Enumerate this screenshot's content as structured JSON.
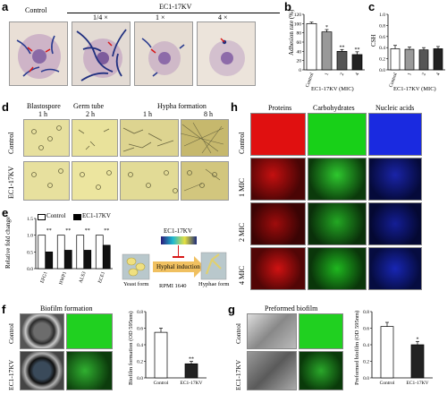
{
  "panels": {
    "a": "a",
    "b": "b",
    "c": "c",
    "d": "d",
    "e": "e",
    "f": "f",
    "g": "g",
    "h": "h"
  },
  "a": {
    "control": "Control",
    "peptide": "EC1-17KV",
    "doses": [
      "1/4 ×",
      "1 ×",
      "4 ×"
    ]
  },
  "b": {
    "ylabel": "Adhesion rate (%)",
    "xlabel": "EC1-17KV (MIC)",
    "ticks_y": [
      "0",
      "20",
      "40",
      "60",
      "80",
      "100",
      "120"
    ]
  },
  "c": {
    "ylabel": "CSH",
    "xlabel": "EC1-17KV (MIC)",
    "ticks_y": [
      "0.0",
      "0.2",
      "0.4",
      "0.6",
      "0.8",
      "1.0"
    ]
  },
  "d": {
    "headers": [
      "Blastospore",
      "Germ tube",
      "Hypha formation"
    ],
    "times": [
      "1 h",
      "2 h",
      "1 h",
      "8 h"
    ],
    "rows": [
      "Control",
      "EC1-17KV"
    ]
  },
  "e": {
    "ylabel": "Relative fold change",
    "legend": [
      "Control",
      "EC1-17KV"
    ],
    "ticks_y": [
      "0.0",
      "0.5",
      "1.0",
      "1.5"
    ],
    "schema": {
      "peptide": "EC1-17KV",
      "arrow": "Hyphal induction",
      "medium": "RPMI 1640",
      "yeast": "Yeast form",
      "hyphae": "Hyphae form"
    }
  },
  "f": {
    "title": "Biofilm formation",
    "rows": [
      "Control",
      "EC1-17KV"
    ],
    "ylabel": "Biofilm formation (OD 595nm)",
    "ticks_y": [
      "0.0",
      "0.2",
      "0.4",
      "0.6",
      "0.8"
    ]
  },
  "g": {
    "title": "Preformed biofilm",
    "rows": [
      "Control",
      "EC1-17KV"
    ],
    "ylabel": "Preformed biofilm (OD 595nm)",
    "ticks_y": [
      "0.0",
      "0.2",
      "0.4",
      "0.6",
      "0.8"
    ]
  },
  "h": {
    "columns": [
      "Proteins",
      "Carbohydrates",
      "Nucleic acids"
    ],
    "rows": [
      "Control",
      "1 MIC",
      "2 MIC",
      "4 MIC"
    ]
  },
  "colors": {
    "red": "#d81818",
    "green": "#28c828",
    "blue": "#1e2ed8",
    "micro_bg": "#e8ddd3",
    "yellow_bg": "#e9e29b"
  },
  "chart_data": [
    {
      "id": "b",
      "type": "bar",
      "categories": [
        "Control",
        "1",
        "2",
        "4"
      ],
      "values": [
        100,
        82,
        40,
        33
      ],
      "errors": [
        3,
        5,
        4,
        6
      ],
      "ylim": [
        0,
        120
      ],
      "significance": [
        "",
        "*",
        "**",
        "**"
      ],
      "ylabel": "Adhesion rate (%)",
      "xlabel": "EC1-17KV (MIC)"
    },
    {
      "id": "c",
      "type": "bar",
      "categories": [
        "Control",
        "1",
        "2",
        "4"
      ],
      "values": [
        0.38,
        0.37,
        0.36,
        0.38
      ],
      "errors": [
        0.06,
        0.04,
        0.04,
        0.04
      ],
      "ylim": [
        0,
        1.0
      ],
      "ylabel": "CSH",
      "xlabel": "EC1-17KV (MIC)"
    },
    {
      "id": "e",
      "type": "bar",
      "categories": [
        "EFG1",
        "HWP1",
        "ALS3",
        "ECE1"
      ],
      "series": [
        {
          "name": "Control",
          "values": [
            1,
            1,
            1,
            1
          ]
        },
        {
          "name": "EC1-17KV",
          "values": [
            0.5,
            0.55,
            0.55,
            0.7
          ]
        }
      ],
      "significance": [
        "**",
        "**",
        "**",
        "**"
      ],
      "ylim": [
        0,
        1.5
      ],
      "ylabel": "Relative fold change"
    },
    {
      "id": "f",
      "type": "bar",
      "categories": [
        "Control",
        "EC1-17KV"
      ],
      "values": [
        0.55,
        0.17
      ],
      "errors": [
        0.05,
        0.03
      ],
      "significance": [
        "",
        "**"
      ],
      "ylim": [
        0,
        0.8
      ],
      "ylabel": "Biofilm formation (OD 595nm)"
    },
    {
      "id": "g",
      "type": "bar",
      "categories": [
        "Control",
        "EC1-17KV"
      ],
      "values": [
        0.62,
        0.4
      ],
      "errors": [
        0.05,
        0.04
      ],
      "significance": [
        "",
        "*"
      ],
      "ylim": [
        0,
        0.8
      ],
      "ylabel": "Preformed biofilm (OD 595nm)"
    }
  ]
}
